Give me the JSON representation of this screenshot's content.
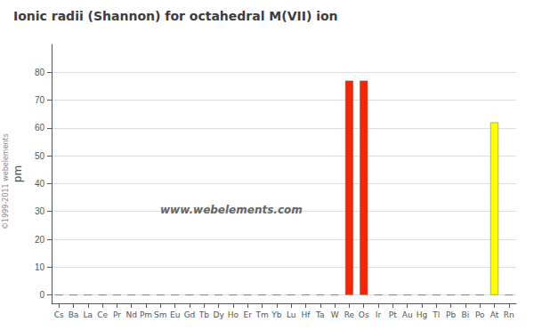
{
  "chart_data": {
    "type": "bar",
    "title": "Ionic radii (Shannon) for octahedral M(VII) ion",
    "ylabel": "pm",
    "categories": [
      "Cs",
      "Ba",
      "La",
      "Ce",
      "Pr",
      "Nd",
      "Pm",
      "Sm",
      "Eu",
      "Gd",
      "Tb",
      "Dy",
      "Ho",
      "Er",
      "Tm",
      "Yb",
      "Lu",
      "Hf",
      "Ta",
      "W",
      "Re",
      "Os",
      "Ir",
      "Pt",
      "Au",
      "Hg",
      "Tl",
      "Pb",
      "Bi",
      "Po",
      "At",
      "Rn"
    ],
    "values": [
      0,
      0,
      0,
      0,
      0,
      0,
      0,
      0,
      0,
      0,
      0,
      0,
      0,
      0,
      0,
      0,
      0,
      0,
      0,
      0,
      77,
      77,
      0,
      0,
      0,
      0,
      0,
      0,
      0,
      0,
      62,
      0
    ],
    "colors": [
      "#aaaaaa",
      "#bbbbbb",
      "#00cc00",
      "#00cc00",
      "#00cc00",
      "#00cc00",
      "#00cc00",
      "#00cc00",
      "#00cc00",
      "#00cc00",
      "#00cc00",
      "#00cc00",
      "#00cc00",
      "#00cc00",
      "#00cc00",
      "#00cc00",
      "#00cc00",
      "#00cc00",
      "#00cc00",
      "#ff8800",
      "#ff2200",
      "#ff2200",
      "#ff8800",
      "#ffff00",
      "#ffff00",
      "#ffff00",
      "#ffff00",
      "#ffff00",
      "#ffff00",
      "#ffff00",
      "#ffff00",
      "#ffffff"
    ],
    "ylim": [
      -3,
      90
    ],
    "yticks": [
      0,
      10,
      20,
      30,
      40,
      50,
      60,
      70,
      80
    ],
    "grid": true,
    "annotations": [
      "www.webelements.com",
      "©1999-2011 webelements"
    ]
  }
}
